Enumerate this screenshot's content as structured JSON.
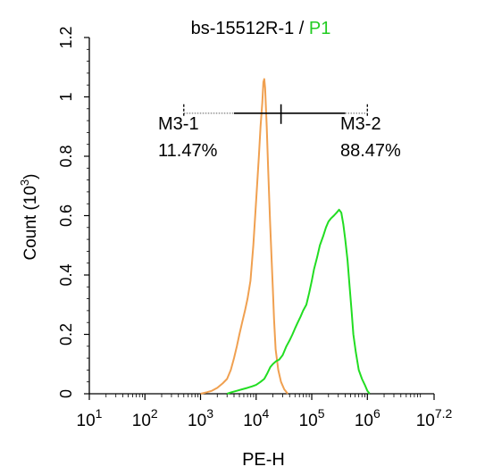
{
  "chart_data": {
    "type": "line",
    "title": {
      "main": "bs-15512R-1 / ",
      "highlight": "P1",
      "highlight_color": "#22cc22"
    },
    "xlabel": "PE-H",
    "ylabel": {
      "main": "Count  (10",
      "superscript": "3",
      "suffix": ")"
    },
    "x_scale": "log",
    "xlim": [
      10,
      15848931.92
    ],
    "ylim": [
      0,
      1.2
    ],
    "x_tick_labels": [
      {
        "base": "10",
        "exp": "1",
        "value": 10
      },
      {
        "base": "10",
        "exp": "2",
        "value": 100
      },
      {
        "base": "10",
        "exp": "3",
        "value": 1000
      },
      {
        "base": "10",
        "exp": "4",
        "value": 10000
      },
      {
        "base": "10",
        "exp": "5",
        "value": 100000
      },
      {
        "base": "10",
        "exp": "6",
        "value": 1000000
      },
      {
        "base": "10",
        "exp": "7.2",
        "value": 15848931.92
      }
    ],
    "y_ticks": [
      0,
      0.2,
      0.4,
      0.6,
      0.8,
      1,
      1.2
    ],
    "y_tick_labels": [
      "0",
      "0.2",
      "0.4",
      "0.6",
      "0.8",
      "1",
      "1.2"
    ],
    "grid": false,
    "series": [
      {
        "color": "#f0a050",
        "points": [
          [
            1000,
            0
          ],
          [
            1300,
            0.005
          ],
          [
            1600,
            0.01
          ],
          [
            2000,
            0.02
          ],
          [
            2500,
            0.035
          ],
          [
            3000,
            0.05
          ],
          [
            3500,
            0.08
          ],
          [
            4000,
            0.12
          ],
          [
            4500,
            0.16
          ],
          [
            5000,
            0.2
          ],
          [
            5600,
            0.24
          ],
          [
            6300,
            0.28
          ],
          [
            7000,
            0.32
          ],
          [
            7900,
            0.38
          ],
          [
            8900,
            0.5
          ],
          [
            10000,
            0.65
          ],
          [
            11200,
            0.8
          ],
          [
            12000,
            0.9
          ],
          [
            12900,
            0.98
          ],
          [
            13500,
            1.05
          ],
          [
            14000,
            1.06
          ],
          [
            14500,
            1.03
          ],
          [
            15500,
            0.9
          ],
          [
            16500,
            0.75
          ],
          [
            17800,
            0.58
          ],
          [
            19000,
            0.45
          ],
          [
            20000,
            0.35
          ],
          [
            21000,
            0.25
          ],
          [
            22400,
            0.15
          ],
          [
            25000,
            0.08
          ],
          [
            28000,
            0.04
          ],
          [
            32000,
            0.015
          ],
          [
            37000,
            0
          ]
        ]
      },
      {
        "color": "#22dd22",
        "points": [
          [
            3000,
            0
          ],
          [
            3600,
            0.005
          ],
          [
            4500,
            0.01
          ],
          [
            5600,
            0.015
          ],
          [
            7000,
            0.02
          ],
          [
            8500,
            0.025
          ],
          [
            10000,
            0.03
          ],
          [
            12000,
            0.04
          ],
          [
            14000,
            0.05
          ],
          [
            16000,
            0.07
          ],
          [
            18000,
            0.09
          ],
          [
            20000,
            0.1
          ],
          [
            23000,
            0.11
          ],
          [
            26000,
            0.115
          ],
          [
            30000,
            0.13
          ],
          [
            35000,
            0.16
          ],
          [
            40000,
            0.18
          ],
          [
            45000,
            0.2
          ],
          [
            50000,
            0.22
          ],
          [
            56000,
            0.24
          ],
          [
            63000,
            0.26
          ],
          [
            70000,
            0.28
          ],
          [
            80000,
            0.3
          ],
          [
            90000,
            0.34
          ],
          [
            100000,
            0.38
          ],
          [
            110000,
            0.42
          ],
          [
            125000,
            0.46
          ],
          [
            140000,
            0.5
          ],
          [
            160000,
            0.53
          ],
          [
            180000,
            0.56
          ],
          [
            200000,
            0.58
          ],
          [
            220000,
            0.59
          ],
          [
            250000,
            0.6
          ],
          [
            280000,
            0.61
          ],
          [
            310000,
            0.62
          ],
          [
            340000,
            0.61
          ],
          [
            370000,
            0.57
          ],
          [
            400000,
            0.52
          ],
          [
            440000,
            0.45
          ],
          [
            480000,
            0.36
          ],
          [
            520000,
            0.28
          ],
          [
            560000,
            0.2
          ],
          [
            620000,
            0.14
          ],
          [
            700000,
            0.08
          ],
          [
            800000,
            0.05
          ],
          [
            900000,
            0.03
          ],
          [
            1000000,
            0.01
          ],
          [
            1100000,
            0
          ]
        ]
      }
    ],
    "markers": {
      "boundary": 28000,
      "bar_y": 0.945,
      "left_range": [
        500,
        28000
      ],
      "right_range": [
        28000,
        1000000
      ],
      "left": {
        "name": "M3-1",
        "percent": "11.47%"
      },
      "right": {
        "name": "M3-2",
        "percent": "88.47%"
      }
    }
  }
}
